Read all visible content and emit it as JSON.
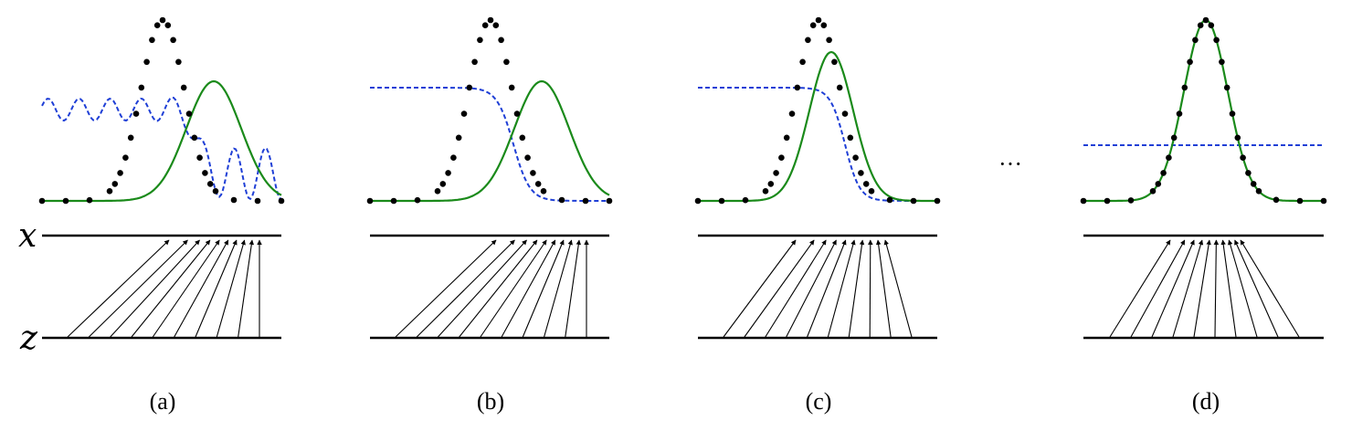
{
  "figure": {
    "axis_labels": {
      "x": "x",
      "z": "z"
    },
    "ellipsis": "···",
    "colors": {
      "data_dots": "#000000",
      "model_density": "#1a8a1a",
      "discriminator": "#1f3fd6",
      "axis_line": "#000000",
      "mapping_arrow": "#000000"
    },
    "panels": [
      {
        "caption": "(a)"
      },
      {
        "caption": "(b)"
      },
      {
        "caption": "(c)"
      },
      {
        "caption": "(d)"
      }
    ]
  }
}
